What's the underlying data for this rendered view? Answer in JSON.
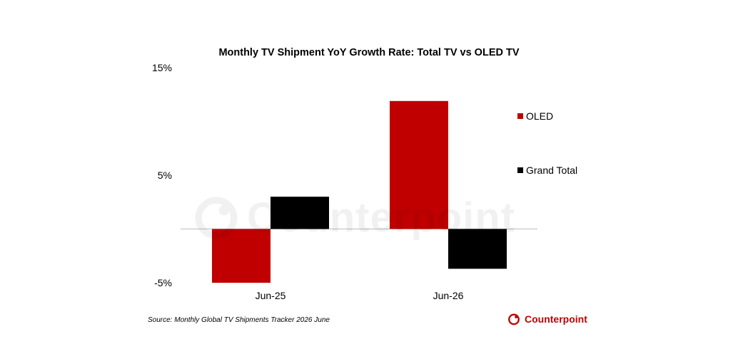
{
  "chart_data": {
    "type": "bar",
    "title": "Monthly TV Shipment YoY Growth Rate: Total TV vs OLED TV",
    "categories": [
      "Jun-25",
      "Jun-26"
    ],
    "series": [
      {
        "name": "OLED",
        "values": [
          -5.0,
          11.9
        ],
        "color": "#c00000"
      },
      {
        "name": "Grand Total",
        "values": [
          3.0,
          -3.7
        ],
        "color": "#000000"
      }
    ],
    "ylim": [
      -5,
      15
    ],
    "yticks": [
      "15%",
      "5%",
      "-5%"
    ],
    "ytick_values": [
      15,
      5,
      -5
    ],
    "xlabel": "",
    "ylabel": "",
    "legend_position": "right",
    "grid": false
  },
  "source": "Source: Monthly Global TV Shipments Tracker 2026 June",
  "brand": {
    "name": "Counterpoint",
    "color": "#c00000"
  },
  "watermark": "Counterpoint"
}
